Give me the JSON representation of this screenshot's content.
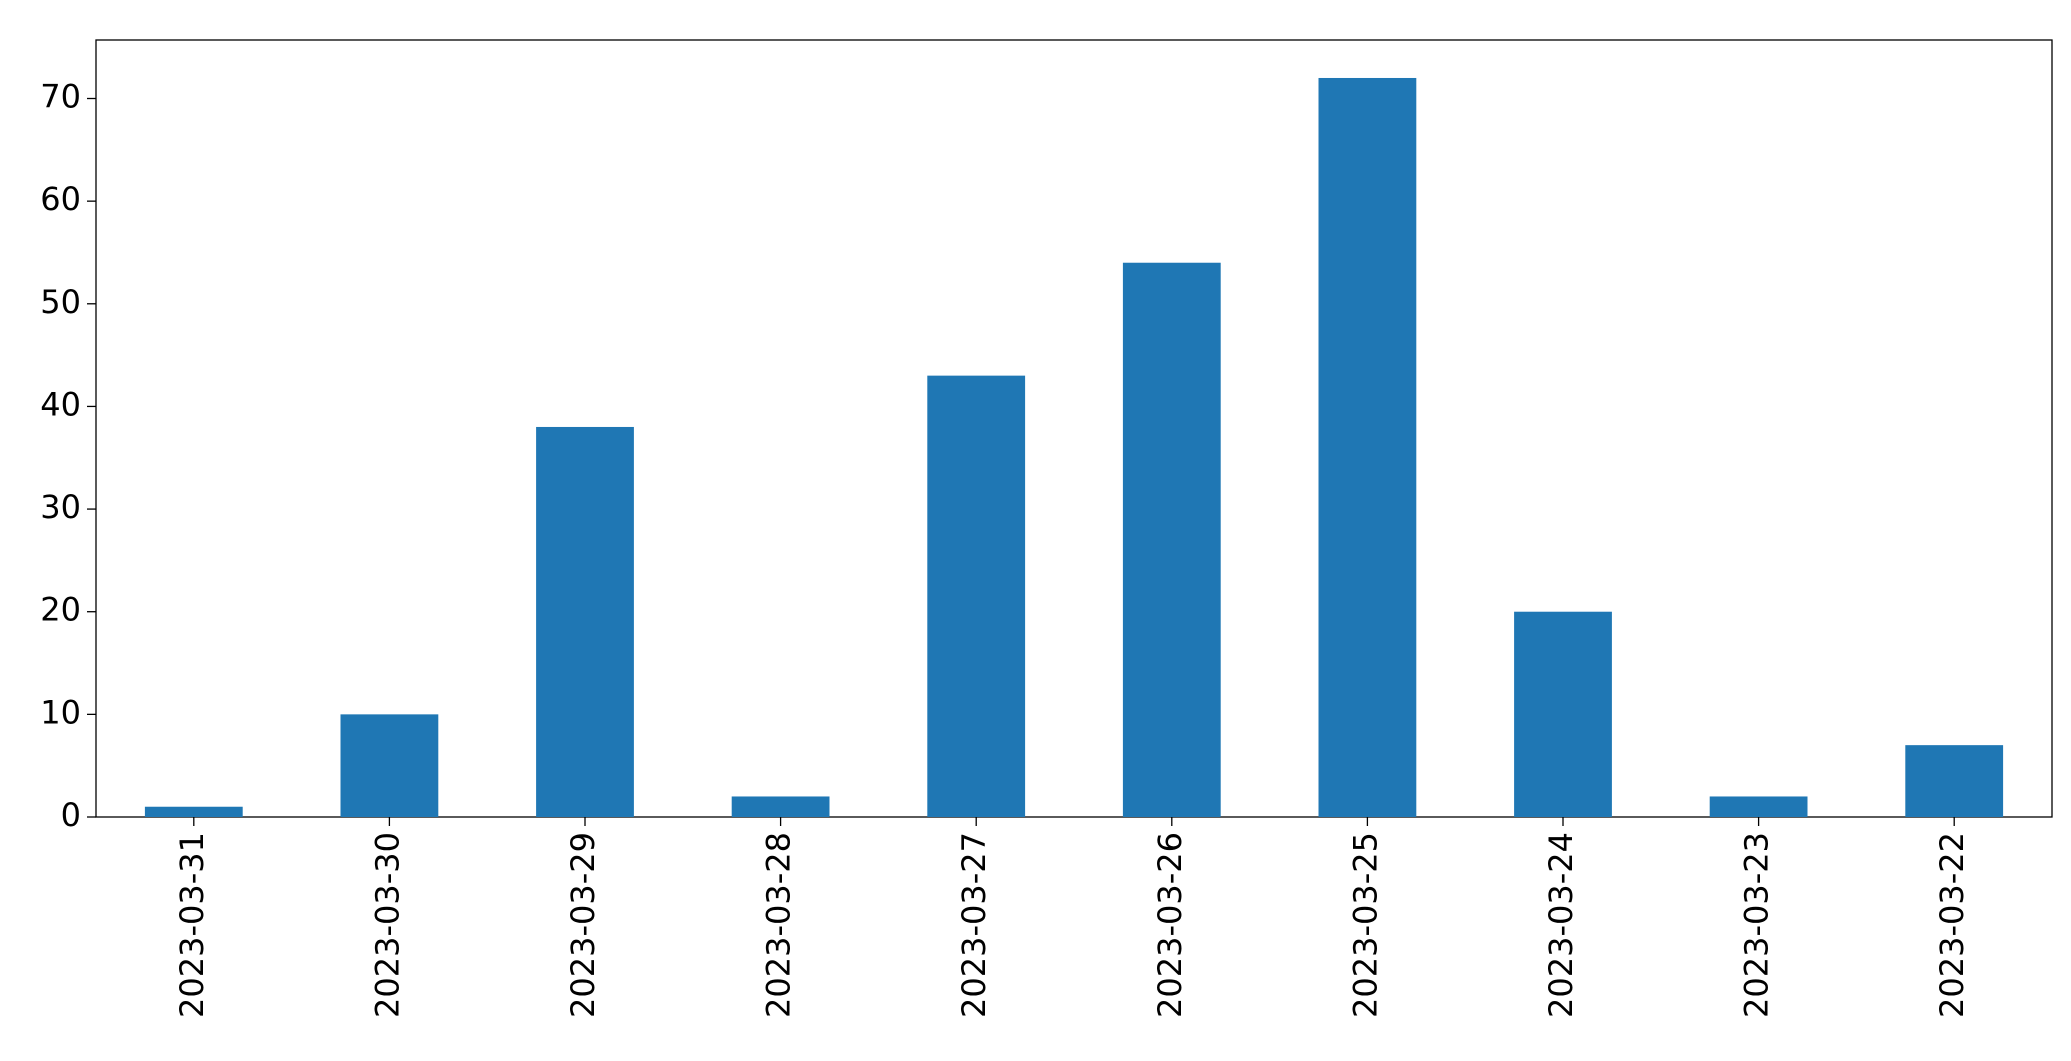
{
  "chart_data": {
    "type": "bar",
    "categories": [
      "2023-03-31",
      "2023-03-30",
      "2023-03-29",
      "2023-03-28",
      "2023-03-27",
      "2023-03-26",
      "2023-03-25",
      "2023-03-24",
      "2023-03-23",
      "2023-03-22"
    ],
    "values": [
      1,
      10,
      38,
      2,
      43,
      54,
      72,
      20,
      2,
      7
    ],
    "color": "#1f77b4",
    "ylim": [
      0,
      75.7
    ],
    "yticks": [
      0,
      10,
      20,
      30,
      40,
      50,
      60,
      70
    ],
    "grid": false
  }
}
